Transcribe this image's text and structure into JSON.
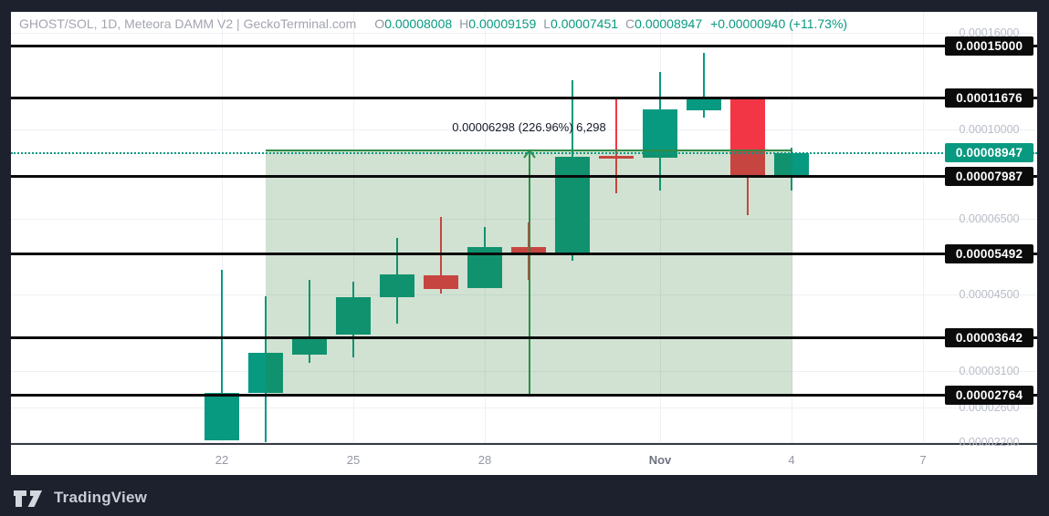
{
  "header": {
    "symbol": "GHOST/SOL, 1D, Meteora DAMM V2 | GeckoTerminal.com",
    "ohlc": [
      {
        "label": "O",
        "value": "0.00008008"
      },
      {
        "label": "H",
        "value": "0.00009159"
      },
      {
        "label": "L",
        "value": "0.00007451"
      },
      {
        "label": "C",
        "value": "0.00008947"
      }
    ],
    "change": "+0.00000940 (+11.73%)"
  },
  "chart_data": {
    "type": "candlestick",
    "symbol": "GHOST/SOL",
    "interval": "1D",
    "y_scale": "log",
    "ylim": [
      2.1e-05,
      0.000165
    ],
    "candles": [
      {
        "date": "Oct 22",
        "o": 2.22e-05,
        "h": 5.07e-05,
        "l": 2.22e-05,
        "c": 2.79e-05
      },
      {
        "date": "Oct 23",
        "o": 2.79e-05,
        "h": 4.46e-05,
        "l": 2.2e-05,
        "c": 3.39e-05
      },
      {
        "date": "Oct 24",
        "o": 3.36e-05,
        "h": 4.84e-05,
        "l": 3.23e-05,
        "c": 3.66e-05
      },
      {
        "date": "Oct 25",
        "o": 3.7e-05,
        "h": 4.78e-05,
        "l": 3.32e-05,
        "c": 4.45e-05
      },
      {
        "date": "Oct 26",
        "o": 4.45e-05,
        "h": 5.92e-05,
        "l": 3.9e-05,
        "c": 4.96e-05
      },
      {
        "date": "Oct 27",
        "o": 4.95e-05,
        "h": 6.55e-05,
        "l": 4.51e-05,
        "c": 4.63e-05
      },
      {
        "date": "Oct 28",
        "o": 4.64e-05,
        "h": 6.25e-05,
        "l": 4.64e-05,
        "c": 5.66e-05
      },
      {
        "date": "Oct 29",
        "o": 5.66e-05,
        "h": 6.39e-05,
        "l": 4.84e-05,
        "c": 5.48e-05
      },
      {
        "date": "Oct 30",
        "o": 5.48e-05,
        "h": 0.0001273,
        "l": 5.29e-05,
        "c": 8.77e-05
      },
      {
        "date": "Oct 31",
        "o": 8.8e-05,
        "h": 0.0001158,
        "l": 7.35e-05,
        "c": 8.73e-05
      },
      {
        "date": "Nov 1",
        "o": 8.73e-05,
        "h": 0.0001323,
        "l": 7.45e-05,
        "c": 0.0001103
      },
      {
        "date": "Nov 2",
        "o": 0.0001098,
        "h": 0.0001454,
        "l": 0.0001062,
        "c": 0.0001161
      },
      {
        "date": "Nov 3",
        "o": 0.00011676,
        "h": 0.00011676,
        "l": 6.62e-05,
        "c": 8.008e-05
      },
      {
        "date": "Nov 4",
        "o": 8.008e-05,
        "h": 9.159e-05,
        "l": 7.451e-05,
        "c": 8.947e-05
      }
    ]
  },
  "price_axis": {
    "line_badges": [
      {
        "price": 0.00015,
        "text": "0.00015000"
      },
      {
        "price": 0.00011676,
        "text": "0.00011676"
      },
      {
        "price": 7.987e-05,
        "text": "0.00007987"
      },
      {
        "price": 5.492e-05,
        "text": "0.00005492"
      },
      {
        "price": 3.642e-05,
        "text": "0.00003642"
      },
      {
        "price": 2.764e-05,
        "text": "0.00002764"
      }
    ],
    "current": {
      "price": 8.947e-05,
      "text": "0.00008947"
    },
    "gray_labels": [
      {
        "price": 0.00016,
        "text": "0.00016000"
      },
      {
        "price": 0.0001,
        "text": "0.00010000"
      },
      {
        "price": 6.5e-05,
        "text": "0.00006500"
      },
      {
        "price": 4.5e-05,
        "text": "0.00004500"
      },
      {
        "price": 3.1e-05,
        "text": "0.00003100"
      },
      {
        "price": 2.6e-05,
        "text": "0.00002600"
      },
      {
        "price": 2.2e-05,
        "text": "0.00002200"
      }
    ]
  },
  "x_axis": {
    "ticks": [
      {
        "label": "22",
        "index": 0,
        "month": false
      },
      {
        "label": "25",
        "index": 3,
        "month": false
      },
      {
        "label": "28",
        "index": 6,
        "month": false
      },
      {
        "label": "Nov",
        "index": 10,
        "month": true
      },
      {
        "label": "4",
        "index": 13,
        "month": false
      },
      {
        "label": "7",
        "index": 16,
        "month": false
      }
    ]
  },
  "measure": {
    "label": "0.00006298 (226.96%) 6,298",
    "from_price": 2.77e-05,
    "to_price": 9.057e-05,
    "start_index": 1,
    "end_index": 13
  },
  "footer": {
    "brand": "TradingView"
  },
  "colors": {
    "up": "#089981",
    "down": "#f23645",
    "accent": "#089981",
    "region_fill": "rgba(46,125,50,0.22)",
    "region_line": "#2e8c46",
    "drawn_line": "#0b0b0b"
  }
}
